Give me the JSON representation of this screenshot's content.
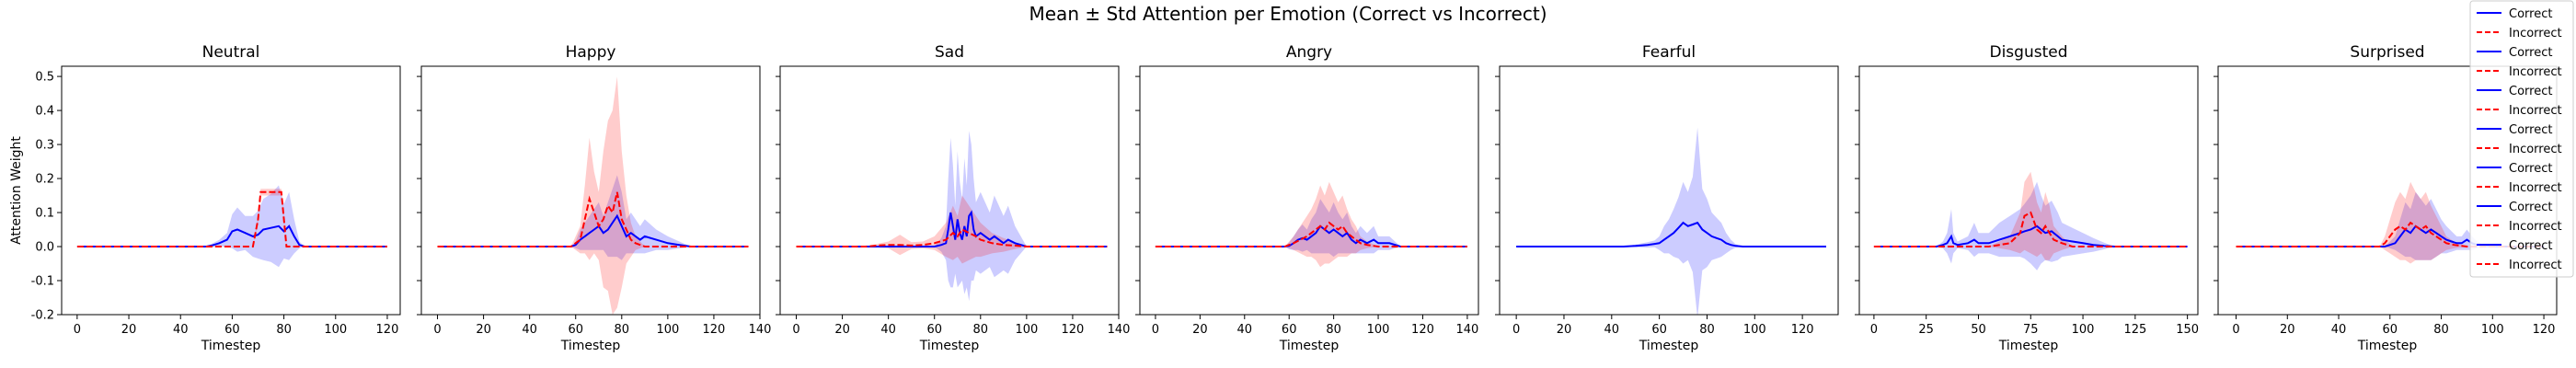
{
  "suptitle": "Mean ± Std Attention per Emotion (Correct vs Incorrect)",
  "shared": {
    "xlabel": "Timestep",
    "ylabel": "Attention Weight",
    "ylim": [
      -0.2,
      0.53
    ],
    "yticks": [
      -0.2,
      -0.1,
      0.0,
      0.1,
      0.2,
      0.3,
      0.4,
      0.5
    ],
    "grid": false
  },
  "legend": {
    "placement": "top-right",
    "entries": [
      {
        "label": "Correct",
        "style": "solid",
        "color": "#0000ff"
      },
      {
        "label": "Incorrect",
        "style": "dashed",
        "color": "#ff0000"
      },
      {
        "label": "Correct",
        "style": "solid",
        "color": "#0000ff"
      },
      {
        "label": "Incorrect",
        "style": "dashed",
        "color": "#ff0000"
      },
      {
        "label": "Correct",
        "style": "solid",
        "color": "#0000ff"
      },
      {
        "label": "Incorrect",
        "style": "dashed",
        "color": "#ff0000"
      },
      {
        "label": "Correct",
        "style": "solid",
        "color": "#0000ff"
      },
      {
        "label": "Incorrect",
        "style": "dashed",
        "color": "#ff0000"
      },
      {
        "label": "Correct",
        "style": "solid",
        "color": "#0000ff"
      },
      {
        "label": "Incorrect",
        "style": "dashed",
        "color": "#ff0000"
      },
      {
        "label": "Correct",
        "style": "solid",
        "color": "#0000ff"
      },
      {
        "label": "Incorrect",
        "style": "dashed",
        "color": "#ff0000"
      },
      {
        "label": "Correct",
        "style": "solid",
        "color": "#0000ff"
      },
      {
        "label": "Incorrect",
        "style": "dashed",
        "color": "#ff0000"
      }
    ]
  },
  "chart_data": [
    {
      "type": "line",
      "title": "Neutral",
      "xlim": [
        -6,
        125
      ],
      "xticks": [
        0,
        20,
        40,
        60,
        80,
        100,
        120
      ],
      "series": [
        {
          "name": "Correct",
          "color": "#0000ff",
          "style": "solid",
          "x": [
            0,
            50,
            52,
            55,
            58,
            60,
            62,
            65,
            68,
            70,
            72,
            75,
            78,
            80,
            82,
            84,
            86,
            88,
            90,
            120
          ],
          "mean": [
            0,
            0,
            0.003,
            0.01,
            0.02,
            0.045,
            0.05,
            0.04,
            0.03,
            0.035,
            0.05,
            0.055,
            0.06,
            0.045,
            0.06,
            0.03,
            0.005,
            0,
            0,
            0
          ],
          "std": [
            0,
            0,
            0.005,
            0.01,
            0.02,
            0.05,
            0.065,
            0.05,
            0.06,
            0.07,
            0.09,
            0.1,
            0.12,
            0.08,
            0.1,
            0.05,
            0.01,
            0,
            0,
            0
          ]
        },
        {
          "name": "Incorrect",
          "color": "#ff0000",
          "style": "dashed",
          "x": [
            0,
            68,
            70,
            71,
            72,
            79,
            80,
            81,
            85,
            120
          ],
          "mean": [
            0,
            0,
            0.08,
            0.16,
            0.16,
            0.16,
            0.08,
            0,
            0,
            0
          ],
          "std": [
            0,
            0,
            0.01,
            0.01,
            0.01,
            0.01,
            0.01,
            0,
            0,
            0
          ]
        }
      ]
    },
    {
      "type": "line",
      "title": "Happy",
      "xlim": [
        -7,
        140
      ],
      "xticks": [
        0,
        20,
        40,
        60,
        80,
        100,
        120,
        140
      ],
      "series": [
        {
          "name": "Correct",
          "color": "#0000ff",
          "style": "solid",
          "x": [
            0,
            58,
            60,
            62,
            64,
            66,
            68,
            70,
            72,
            74,
            76,
            78,
            80,
            82,
            84,
            86,
            88,
            90,
            95,
            100,
            105,
            110,
            135
          ],
          "mean": [
            0,
            0,
            0.005,
            0.02,
            0.03,
            0.04,
            0.05,
            0.06,
            0.04,
            0.05,
            0.07,
            0.09,
            0.06,
            0.03,
            0.04,
            0.03,
            0.02,
            0.03,
            0.02,
            0.01,
            0.005,
            0,
            0
          ],
          "std": [
            0,
            0,
            0.01,
            0.03,
            0.04,
            0.05,
            0.06,
            0.07,
            0.05,
            0.08,
            0.1,
            0.12,
            0.1,
            0.05,
            0.06,
            0.05,
            0.04,
            0.05,
            0.03,
            0.02,
            0.01,
            0,
            0
          ]
        },
        {
          "name": "Incorrect",
          "color": "#ff0000",
          "style": "dashed",
          "x": [
            0,
            58,
            62,
            64,
            66,
            68,
            70,
            72,
            74,
            76,
            78,
            80,
            82,
            84,
            86,
            90,
            135
          ],
          "mean": [
            0,
            0,
            0.02,
            0.08,
            0.14,
            0.1,
            0.06,
            0.08,
            0.12,
            0.1,
            0.16,
            0.08,
            0.05,
            0.02,
            0.01,
            0,
            0
          ],
          "std": [
            0,
            0,
            0.04,
            0.1,
            0.18,
            0.12,
            0.1,
            0.2,
            0.25,
            0.3,
            0.34,
            0.2,
            0.1,
            0.05,
            0.02,
            0,
            0
          ]
        }
      ]
    },
    {
      "type": "line",
      "title": "Sad",
      "xlim": [
        -7,
        140
      ],
      "xticks": [
        0,
        20,
        40,
        60,
        80,
        100,
        120,
        140
      ],
      "series": [
        {
          "name": "Correct",
          "color": "#0000ff",
          "style": "solid",
          "x": [
            0,
            60,
            63,
            65,
            66,
            67,
            68,
            69,
            70,
            71,
            72,
            73,
            74,
            75,
            76,
            77,
            78,
            80,
            82,
            84,
            86,
            88,
            90,
            92,
            95,
            100,
            135
          ],
          "mean": [
            0,
            0,
            0.005,
            0.01,
            0.05,
            0.1,
            0.06,
            0.02,
            0.08,
            0.04,
            0.02,
            0.06,
            0.03,
            0.09,
            0.1,
            0.05,
            0.03,
            0.04,
            0.03,
            0.02,
            0.03,
            0.02,
            0.01,
            0.02,
            0.01,
            0,
            0
          ],
          "std": [
            0,
            0,
            0.02,
            0.05,
            0.15,
            0.22,
            0.18,
            0.1,
            0.2,
            0.15,
            0.12,
            0.2,
            0.15,
            0.25,
            0.2,
            0.15,
            0.1,
            0.12,
            0.1,
            0.08,
            0.12,
            0.1,
            0.08,
            0.1,
            0.05,
            0,
            0
          ]
        },
        {
          "name": "Incorrect",
          "color": "#ff0000",
          "style": "dashed",
          "x": [
            0,
            30,
            35,
            40,
            45,
            50,
            55,
            60,
            65,
            68,
            70,
            72,
            75,
            78,
            80,
            85,
            90,
            95,
            100,
            135
          ],
          "mean": [
            0,
            0,
            0.003,
            0.005,
            0.005,
            0.003,
            0.005,
            0.01,
            0.02,
            0.04,
            0.03,
            0.05,
            0.04,
            0.03,
            0.02,
            0.01,
            0.005,
            0.003,
            0,
            0
          ],
          "std": [
            0,
            0,
            0.005,
            0.01,
            0.03,
            0.01,
            0.01,
            0.02,
            0.05,
            0.08,
            0.06,
            0.1,
            0.08,
            0.06,
            0.05,
            0.03,
            0.02,
            0.01,
            0,
            0
          ]
        }
      ]
    },
    {
      "type": "line",
      "title": "Angry",
      "xlim": [
        -7,
        145
      ],
      "xticks": [
        0,
        20,
        40,
        60,
        80,
        100,
        120,
        140
      ],
      "series": [
        {
          "name": "Correct",
          "color": "#0000ff",
          "style": "solid",
          "x": [
            0,
            58,
            60,
            62,
            64,
            66,
            68,
            70,
            72,
            74,
            76,
            78,
            80,
            82,
            84,
            86,
            88,
            90,
            92,
            95,
            98,
            100,
            105,
            110,
            140
          ],
          "mean": [
            0,
            0,
            0.002,
            0.01,
            0.02,
            0.025,
            0.02,
            0.03,
            0.04,
            0.06,
            0.05,
            0.04,
            0.05,
            0.04,
            0.03,
            0.04,
            0.02,
            0.01,
            0.02,
            0.01,
            0.02,
            0.01,
            0.01,
            0,
            0
          ],
          "std": [
            0,
            0,
            0.01,
            0.02,
            0.03,
            0.04,
            0.03,
            0.05,
            0.06,
            0.08,
            0.07,
            0.06,
            0.08,
            0.06,
            0.05,
            0.06,
            0.04,
            0.03,
            0.04,
            0.03,
            0.04,
            0.02,
            0.02,
            0,
            0
          ]
        },
        {
          "name": "Incorrect",
          "color": "#ff0000",
          "style": "dashed",
          "x": [
            0,
            58,
            62,
            65,
            68,
            70,
            72,
            74,
            76,
            78,
            80,
            82,
            84,
            86,
            88,
            90,
            92,
            95,
            100,
            140
          ],
          "mean": [
            0,
            0,
            0.01,
            0.02,
            0.03,
            0.04,
            0.05,
            0.06,
            0.05,
            0.07,
            0.06,
            0.05,
            0.06,
            0.04,
            0.03,
            0.02,
            0.01,
            0.005,
            0,
            0
          ],
          "std": [
            0,
            0,
            0.02,
            0.04,
            0.06,
            0.07,
            0.09,
            0.12,
            0.1,
            0.12,
            0.1,
            0.08,
            0.09,
            0.07,
            0.05,
            0.04,
            0.02,
            0.01,
            0,
            0
          ]
        }
      ]
    },
    {
      "type": "line",
      "title": "Fearful",
      "xlim": [
        -7,
        135
      ],
      "xticks": [
        0,
        20,
        40,
        60,
        80,
        100,
        120
      ],
      "series": [
        {
          "name": "Correct",
          "color": "#0000ff",
          "style": "solid",
          "x": [
            0,
            45,
            50,
            55,
            58,
            60,
            62,
            64,
            66,
            68,
            70,
            72,
            74,
            76,
            78,
            80,
            82,
            84,
            86,
            88,
            90,
            92,
            95,
            130
          ],
          "mean": [
            0,
            0,
            0.002,
            0.005,
            0.008,
            0.01,
            0.02,
            0.03,
            0.04,
            0.055,
            0.07,
            0.06,
            0.065,
            0.07,
            0.05,
            0.04,
            0.03,
            0.025,
            0.02,
            0.01,
            0.005,
            0.002,
            0,
            0
          ],
          "std": [
            0,
            0,
            0.004,
            0.008,
            0.01,
            0.02,
            0.04,
            0.05,
            0.07,
            0.09,
            0.12,
            0.1,
            0.14,
            0.28,
            0.12,
            0.1,
            0.07,
            0.06,
            0.05,
            0.03,
            0.015,
            0.005,
            0,
            0
          ]
        }
      ]
    },
    {
      "type": "line",
      "title": "Disgusted",
      "xlim": [
        -7,
        155
      ],
      "xticks": [
        0,
        25,
        50,
        75,
        100,
        125,
        150
      ],
      "series": [
        {
          "name": "Correct",
          "color": "#0000ff",
          "style": "solid",
          "x": [
            0,
            30,
            33,
            35,
            37,
            38,
            40,
            45,
            48,
            50,
            55,
            60,
            65,
            70,
            72,
            75,
            78,
            80,
            82,
            85,
            88,
            90,
            95,
            100,
            105,
            110,
            115,
            150
          ],
          "mean": [
            0,
            0,
            0.005,
            0.01,
            0.03,
            0.01,
            0.005,
            0.01,
            0.02,
            0.01,
            0.01,
            0.02,
            0.03,
            0.04,
            0.045,
            0.05,
            0.06,
            0.05,
            0.04,
            0.045,
            0.03,
            0.02,
            0.015,
            0.01,
            0.005,
            0.002,
            0,
            0
          ],
          "std": [
            0,
            0,
            0.01,
            0.03,
            0.08,
            0.03,
            0.01,
            0.02,
            0.05,
            0.03,
            0.03,
            0.05,
            0.06,
            0.07,
            0.08,
            0.1,
            0.13,
            0.1,
            0.08,
            0.09,
            0.07,
            0.05,
            0.04,
            0.03,
            0.02,
            0.01,
            0,
            0
          ]
        },
        {
          "name": "Incorrect",
          "color": "#ff0000",
          "style": "dashed",
          "x": [
            0,
            55,
            60,
            65,
            70,
            72,
            75,
            78,
            80,
            82,
            84,
            86,
            90,
            95,
            150
          ],
          "mean": [
            0,
            0,
            0.005,
            0.01,
            0.04,
            0.09,
            0.1,
            0.05,
            0.04,
            0.06,
            0.04,
            0.02,
            0.01,
            0,
            0
          ],
          "std": [
            0,
            0,
            0.01,
            0.02,
            0.06,
            0.1,
            0.12,
            0.08,
            0.06,
            0.1,
            0.08,
            0.04,
            0.02,
            0,
            0
          ]
        }
      ]
    },
    {
      "type": "line",
      "title": "Surprised",
      "xlim": [
        -7,
        125
      ],
      "xticks": [
        0,
        20,
        40,
        60,
        80,
        100,
        120
      ],
      "series": [
        {
          "name": "Correct",
          "color": "#0000ff",
          "style": "solid",
          "x": [
            0,
            58,
            60,
            62,
            64,
            66,
            68,
            70,
            72,
            74,
            76,
            78,
            80,
            82,
            84,
            86,
            88,
            90,
            92,
            94,
            96,
            100,
            120
          ],
          "mean": [
            0,
            0,
            0.005,
            0.01,
            0.03,
            0.05,
            0.04,
            0.06,
            0.05,
            0.04,
            0.05,
            0.04,
            0.03,
            0.02,
            0.015,
            0.01,
            0.01,
            0.02,
            0.01,
            0.005,
            0.002,
            0,
            0
          ],
          "std": [
            0,
            0,
            0.01,
            0.02,
            0.05,
            0.08,
            0.07,
            0.1,
            0.09,
            0.08,
            0.09,
            0.07,
            0.05,
            0.04,
            0.03,
            0.02,
            0.02,
            0.03,
            0.02,
            0.01,
            0.005,
            0,
            0
          ]
        },
        {
          "name": "Incorrect",
          "color": "#ff0000",
          "style": "dashed",
          "x": [
            0,
            56,
            58,
            60,
            62,
            64,
            66,
            68,
            70,
            72,
            74,
            76,
            78,
            80,
            82,
            85,
            90,
            120
          ],
          "mean": [
            0,
            0,
            0.01,
            0.03,
            0.05,
            0.06,
            0.05,
            0.07,
            0.06,
            0.05,
            0.06,
            0.04,
            0.03,
            0.02,
            0.01,
            0.005,
            0,
            0
          ],
          "std": [
            0,
            0,
            0.02,
            0.05,
            0.08,
            0.1,
            0.09,
            0.12,
            0.1,
            0.09,
            0.1,
            0.08,
            0.06,
            0.04,
            0.02,
            0.01,
            0,
            0
          ]
        }
      ]
    }
  ]
}
